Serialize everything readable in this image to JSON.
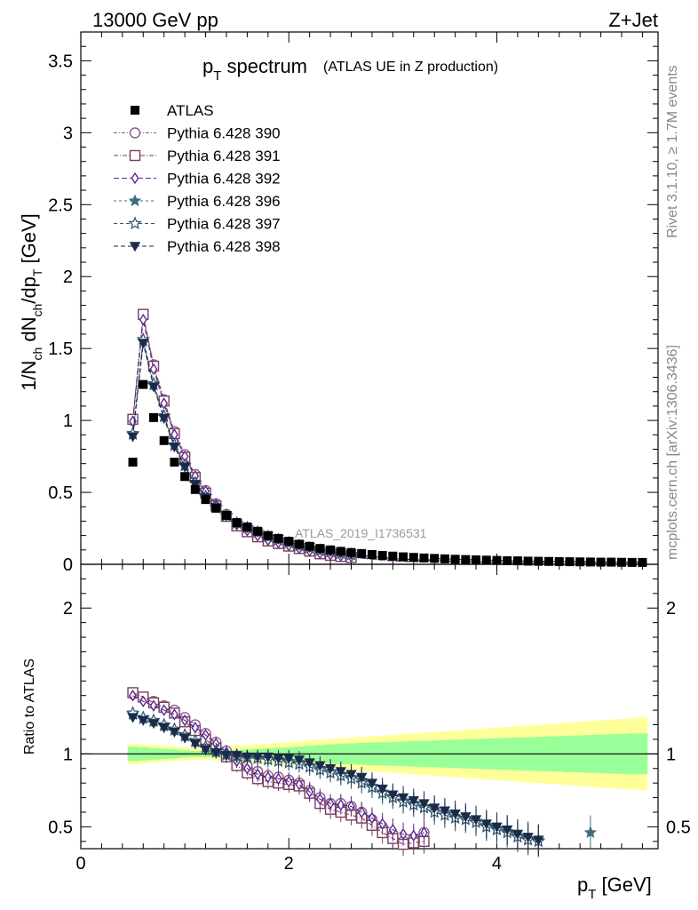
{
  "header": {
    "left": "13000 GeV pp",
    "right": "Z+Jet"
  },
  "side_labels": {
    "rivet": "Rivet 3.1.10, ≥ 1.7M events",
    "mcplots": "mcplots.cern.ch [arXiv:1306.3436]"
  },
  "colors": {
    "data": "#000000",
    "p390": "#8e5a8a",
    "p391": "#7a3e5e",
    "p392": "#5b2a8c",
    "p396": "#3d6e7e",
    "p397": "#2e5470",
    "p398": "#1c2a4a",
    "band_stat": "#99ff99",
    "band_total": "#ffff99"
  },
  "chart_data": {
    "type": "scatter",
    "title_main": "p",
    "title_sub": "T",
    "title_rest": " spectrum",
    "title_suffix": "(ATLAS UE in Z production)",
    "analysis_label": "ATLAS_2019_I1736531",
    "xlabel": "p",
    "xlabel_sub": "T",
    "xlabel_rest": " [GeV]",
    "ylabel_parts": [
      "1/N",
      "ch",
      " dN",
      "ch",
      "/dp",
      "T",
      " [GeV]"
    ],
    "ratio_ylabel": "Ratio to ATLAS",
    "xlim": [
      0,
      5.55
    ],
    "ylim": [
      0,
      3.7
    ],
    "ratio_ylim": [
      0.35,
      2.3
    ],
    "x_ticks": [
      "0",
      "2",
      "4"
    ],
    "y_ticks": [
      "0",
      "0.5",
      "1",
      "1.5",
      "2",
      "2.5",
      "3",
      "3.5"
    ],
    "ratio_ticks": [
      "0.5",
      "1",
      "2"
    ],
    "x": [
      0.5,
      0.6,
      0.7,
      0.8,
      0.9,
      1.0,
      1.1,
      1.2,
      1.3,
      1.4,
      1.5,
      1.6,
      1.7,
      1.8,
      1.9,
      2.0,
      2.1,
      2.2,
      2.3,
      2.4,
      2.5,
      2.6,
      2.7,
      2.8,
      2.9,
      3.0,
      3.1,
      3.2,
      3.3,
      3.4,
      3.5,
      3.6,
      3.7,
      3.8,
      3.9,
      4.0,
      4.1,
      4.2,
      4.3,
      4.4,
      4.5,
      4.6,
      4.7,
      4.8,
      4.9,
      5.0,
      5.1,
      5.2,
      5.3,
      5.4
    ],
    "data_values": [
      0.71,
      1.25,
      1.02,
      0.86,
      0.71,
      0.61,
      0.52,
      0.45,
      0.39,
      0.34,
      0.29,
      0.26,
      0.23,
      0.2,
      0.18,
      0.16,
      0.14,
      0.125,
      0.11,
      0.1,
      0.09,
      0.082,
      0.075,
      0.068,
      0.062,
      0.057,
      0.052,
      0.048,
      0.044,
      0.041,
      0.038,
      0.035,
      0.033,
      0.031,
      0.029,
      0.027,
      0.025,
      0.024,
      0.022,
      0.021,
      0.02,
      0.019,
      0.018,
      0.017,
      0.016,
      0.015,
      0.015,
      0.014,
      0.013,
      0.013
    ],
    "band_stat_halfwidth": [
      0.05,
      0.045,
      0.04,
      0.035,
      0.03,
      0.025,
      0.02,
      0.02,
      0.022,
      0.025,
      0.028,
      0.032,
      0.035,
      0.038,
      0.042,
      0.045,
      0.05,
      0.055,
      0.06,
      0.065,
      0.07,
      0.072,
      0.075,
      0.078,
      0.08,
      0.082,
      0.085,
      0.088,
      0.09,
      0.092,
      0.095,
      0.097,
      0.1,
      0.102,
      0.105,
      0.107,
      0.11,
      0.112,
      0.115,
      0.117,
      0.12,
      0.122,
      0.125,
      0.127,
      0.13,
      0.132,
      0.135,
      0.137,
      0.14,
      0.14
    ],
    "band_total_halfwidth": [
      0.07,
      0.065,
      0.06,
      0.055,
      0.05,
      0.045,
      0.04,
      0.04,
      0.045,
      0.05,
      0.055,
      0.06,
      0.065,
      0.07,
      0.075,
      0.08,
      0.085,
      0.09,
      0.095,
      0.1,
      0.105,
      0.11,
      0.115,
      0.12,
      0.125,
      0.13,
      0.135,
      0.14,
      0.145,
      0.15,
      0.155,
      0.16,
      0.165,
      0.17,
      0.175,
      0.18,
      0.185,
      0.19,
      0.195,
      0.2,
      0.205,
      0.21,
      0.215,
      0.22,
      0.225,
      0.23,
      0.235,
      0.24,
      0.245,
      0.25
    ],
    "series": [
      {
        "name": "Pythia 6.428 390",
        "marker": "circle-open",
        "color_key": "p390",
        "ratio": [
          1.41,
          1.38,
          1.36,
          1.33,
          1.3,
          1.25,
          1.2,
          1.14,
          1.08,
          1.02,
          0.96,
          0.92,
          0.88,
          0.85,
          0.84,
          0.82,
          0.8,
          0.75,
          0.7,
          0.66,
          0.66,
          0.64,
          0.6,
          0.55,
          0.5,
          0.45,
          0.4,
          0.42,
          0.46,
          null,
          null,
          null,
          null,
          null,
          null,
          null,
          null,
          null,
          null,
          null,
          null,
          null,
          null,
          null,
          null,
          null,
          null,
          null,
          null,
          null
        ]
      },
      {
        "name": "Pythia 6.428 391",
        "marker": "square-open",
        "color_key": "p391",
        "ratio": [
          1.42,
          1.39,
          1.35,
          1.32,
          1.28,
          1.22,
          1.16,
          1.1,
          1.04,
          0.98,
          0.92,
          0.87,
          0.83,
          0.81,
          0.8,
          0.79,
          0.78,
          0.73,
          0.66,
          0.62,
          0.6,
          0.58,
          0.56,
          0.51,
          0.46,
          0.42,
          0.38,
          0.39,
          0.4,
          null,
          null,
          null,
          null,
          null,
          null,
          null,
          null,
          null,
          null,
          null,
          null,
          null,
          null,
          null,
          null,
          null,
          null,
          null,
          null,
          null
        ]
      },
      {
        "name": "Pythia 6.428 392",
        "marker": "diamond-open",
        "color_key": "p392",
        "ratio": [
          1.4,
          1.36,
          1.33,
          1.3,
          1.27,
          1.23,
          1.18,
          1.13,
          1.07,
          1.01,
          0.95,
          0.9,
          0.86,
          0.84,
          0.83,
          0.81,
          0.79,
          0.74,
          0.69,
          0.66,
          0.65,
          0.64,
          0.6,
          0.56,
          0.52,
          0.48,
          0.45,
          0.44,
          0.46,
          null,
          null,
          null,
          null,
          null,
          null,
          null,
          null,
          null,
          null,
          null,
          null,
          null,
          null,
          null,
          null,
          null,
          null,
          null,
          null,
          null
        ]
      },
      {
        "name": "Pythia 6.428 396",
        "marker": "star-filled",
        "color_key": "p396",
        "ratio": [
          1.27,
          1.24,
          1.22,
          1.19,
          1.16,
          1.12,
          1.08,
          1.04,
          1.01,
          0.99,
          0.98,
          0.97,
          0.97,
          0.97,
          0.96,
          0.95,
          0.94,
          0.92,
          0.9,
          0.88,
          0.86,
          0.84,
          0.82,
          0.78,
          0.74,
          0.71,
          0.68,
          0.66,
          0.64,
          0.62,
          0.6,
          0.57,
          0.56,
          0.54,
          0.51,
          0.49,
          0.47,
          0.44,
          0.42,
          0.41,
          null,
          null,
          null,
          null,
          0.46,
          null,
          null,
          null,
          null,
          null
        ]
      },
      {
        "name": "Pythia 6.428 397",
        "marker": "star-open",
        "color_key": "p397",
        "ratio": [
          1.28,
          1.25,
          1.23,
          1.2,
          1.17,
          1.13,
          1.09,
          1.05,
          1.02,
          1.0,
          0.99,
          0.98,
          0.97,
          0.96,
          0.95,
          0.94,
          0.93,
          0.91,
          0.89,
          0.87,
          0.85,
          0.83,
          0.8,
          0.77,
          0.73,
          0.7,
          0.67,
          0.65,
          0.63,
          0.6,
          0.58,
          0.56,
          0.55,
          0.53,
          0.5,
          0.48,
          0.46,
          0.43,
          0.41,
          0.4,
          null,
          null,
          null,
          null,
          null,
          null,
          null,
          null,
          null,
          null
        ]
      },
      {
        "name": "Pythia 6.428 398",
        "marker": "triangle-down",
        "color_key": "p398",
        "ratio": [
          1.25,
          1.23,
          1.21,
          1.18,
          1.15,
          1.11,
          1.07,
          1.03,
          1.01,
          0.99,
          0.99,
          0.98,
          0.98,
          0.98,
          0.97,
          0.97,
          0.96,
          0.94,
          0.92,
          0.9,
          0.88,
          0.86,
          0.84,
          0.8,
          0.76,
          0.72,
          0.7,
          0.68,
          0.66,
          0.63,
          0.61,
          0.59,
          0.57,
          0.55,
          0.52,
          0.5,
          0.48,
          0.45,
          0.43,
          0.41,
          null,
          null,
          null,
          null,
          null,
          null,
          null,
          null,
          null,
          null
        ]
      }
    ]
  }
}
